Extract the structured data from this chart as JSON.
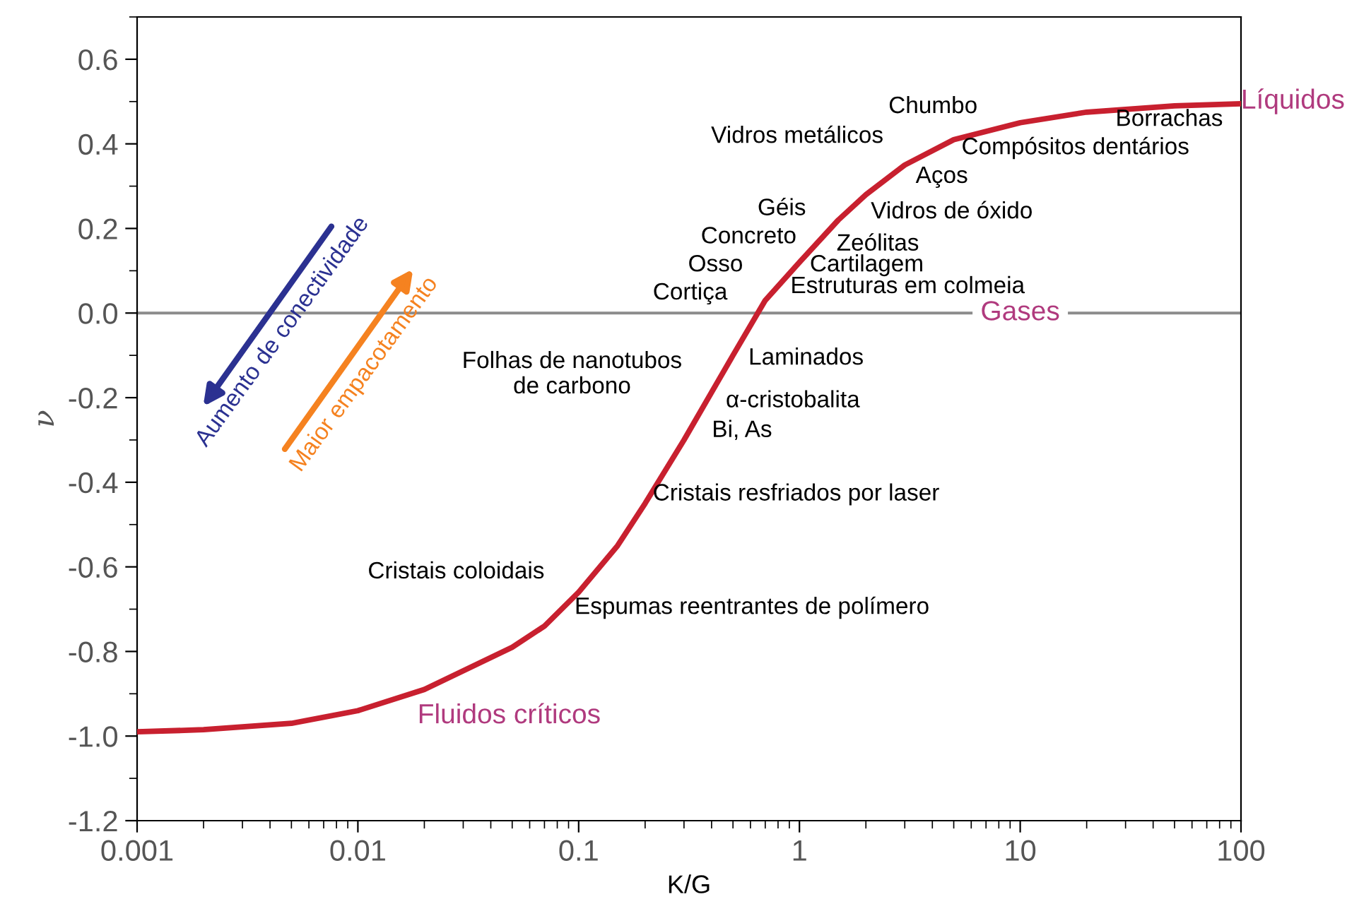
{
  "chart_data": {
    "type": "line",
    "xlabel": "K/G",
    "ylabel": "ν",
    "log": "x",
    "grid": false,
    "x": [
      0.001,
      0.002,
      0.005,
      0.01,
      0.02,
      0.05,
      0.07,
      0.1,
      0.15,
      0.2,
      0.3,
      0.5,
      0.7,
      1,
      1.5,
      2,
      3,
      5,
      10,
      20,
      50,
      100
    ],
    "series": [
      {
        "color": "#c8202f",
        "values": [
          -0.99,
          -0.985,
          -0.97,
          -0.94,
          -0.89,
          -0.79,
          -0.74,
          -0.66,
          -0.55,
          -0.45,
          -0.3,
          -0.1,
          0.03,
          0.12,
          0.22,
          0.28,
          0.35,
          0.41,
          0.45,
          0.475,
          0.49,
          0.495
        ]
      }
    ],
    "xlim": [
      0.001,
      100
    ],
    "xticks": [
      0.001,
      0.01,
      0.1,
      1,
      10,
      100
    ],
    "ylim": [
      -1.2,
      0.7
    ],
    "yticks": [
      -1.2,
      {
        "value": -1,
        "label": "-1.0"
      },
      -0.8,
      -0.6,
      -0.4,
      -0.2,
      {
        "value": 0,
        "label": "0.0"
      },
      0.2,
      0.4,
      0.6
    ],
    "ref_lines": [
      {
        "axis": "y",
        "value": 0,
        "label": "Gases",
        "color": "#8c8c8c"
      }
    ],
    "annotations": [
      "Chumbo",
      "Vidros metálicos",
      "Borrachas",
      "Compósitos dentários",
      "Aços",
      "Vidros de óxido",
      "Géis",
      "Concreto",
      "Osso",
      "Cortiça",
      "Zeólitas",
      "Cartilagem",
      "Estruturas em colmeia",
      "Laminados",
      "α-cristobalita",
      "Bi, As",
      "Folhas de nanotubos\nde carbono",
      "Cristais resfriados por laser",
      "Cristais coloidais",
      "Espumas reentrantes de polímero",
      "Fluidos críticos",
      "Líquidos",
      "Aumento de conectividade",
      "Maior empacotamento"
    ]
  }
}
